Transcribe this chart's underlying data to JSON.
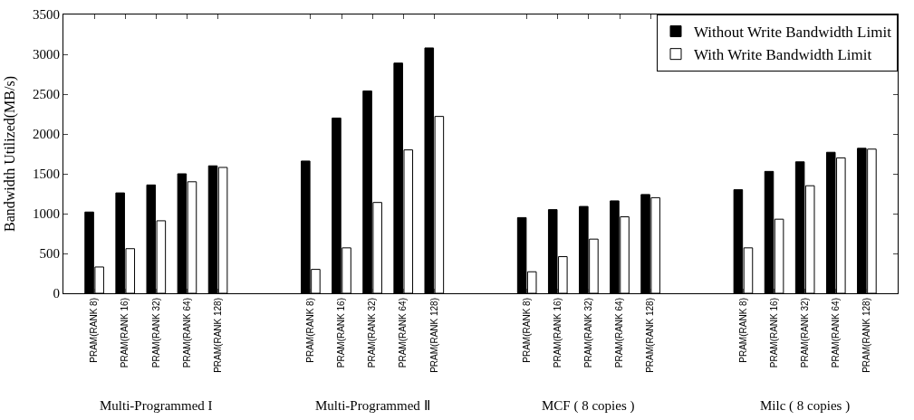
{
  "chart_data": {
    "type": "bar",
    "ylabel": "Bandwidth Utilized(MB/s)",
    "categories": [
      "PRAM(RANK 8)",
      "PRAM(RANK 16)",
      "PRAM(RANK 32)",
      "PRAM(RANK 64)",
      "PRAM(RANK 128)",
      null,
      null,
      "PRAM(RANK 8)",
      "PRAM(RANK 16)",
      "PRAM(RANK 32)",
      "PRAM(RANK 64)",
      "PRAM(RANK 128)",
      null,
      null,
      "PRAM(RANK 8)",
      "PRAM(RANK 16)",
      "PRAM(RANK 32)",
      "PRAM(RANK 64)",
      "PRAM(RANK 128)",
      null,
      null,
      "PRAM(RANK 8)",
      "PRAM(RANK 16)",
      "PRAM(RANK 32)",
      "PRAM(RANK 64)",
      "PRAM(RANK 128)"
    ],
    "series": [
      {
        "name": "Without Write Bandwidth Limit",
        "color": "#000000",
        "values": [
          1020,
          1260,
          1360,
          1500,
          1600,
          null,
          null,
          1660,
          2200,
          2540,
          2890,
          3080,
          null,
          null,
          950,
          1050,
          1090,
          1160,
          1240,
          null,
          null,
          1300,
          1530,
          1650,
          1770,
          1820
        ]
      },
      {
        "name": "With Write Bandwidth Limit",
        "color": "#ffffff",
        "values": [
          330,
          560,
          910,
          1400,
          1580,
          null,
          null,
          300,
          570,
          1140,
          1800,
          2220,
          null,
          null,
          270,
          460,
          680,
          960,
          1200,
          null,
          null,
          570,
          930,
          1350,
          1700,
          1810
        ]
      }
    ],
    "ylim": [
      0,
      3500
    ],
    "yticks": [
      0,
      500,
      1000,
      1500,
      2000,
      2500,
      3000,
      3500
    ],
    "legend": "top right",
    "annotations": [
      "Multi-Programmed I",
      "Multi-Programmed Ⅱ",
      "MCF ( 8 copies )",
      "Milc ( 8 copies )"
    ]
  }
}
